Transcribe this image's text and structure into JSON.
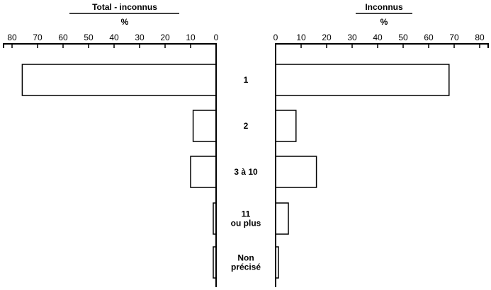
{
  "chart_data": [
    {
      "type": "bar",
      "orientation": "horizontal",
      "direction": "right-to-left",
      "title": "Total - inconnus",
      "unit": "%",
      "categories": [
        "1",
        "2",
        "3 à 10",
        "11\nou plus",
        "Non\nprécisé"
      ],
      "values": [
        76,
        9,
        10,
        1,
        1
      ],
      "xlim": [
        0,
        80
      ],
      "ticks": [
        80,
        70,
        60,
        50,
        40,
        30,
        20,
        10,
        0
      ],
      "grid": false
    },
    {
      "type": "bar",
      "orientation": "horizontal",
      "direction": "left-to-right",
      "title": "Inconnus",
      "unit": "%",
      "categories": [
        "1",
        "2",
        "3 à 10",
        "11\nou plus",
        "Non\nprécisé"
      ],
      "values": [
        68,
        8,
        16,
        5,
        1
      ],
      "xlim": [
        0,
        80
      ],
      "ticks": [
        0,
        10,
        20,
        30,
        40,
        50,
        60,
        70,
        80
      ],
      "grid": false
    }
  ]
}
